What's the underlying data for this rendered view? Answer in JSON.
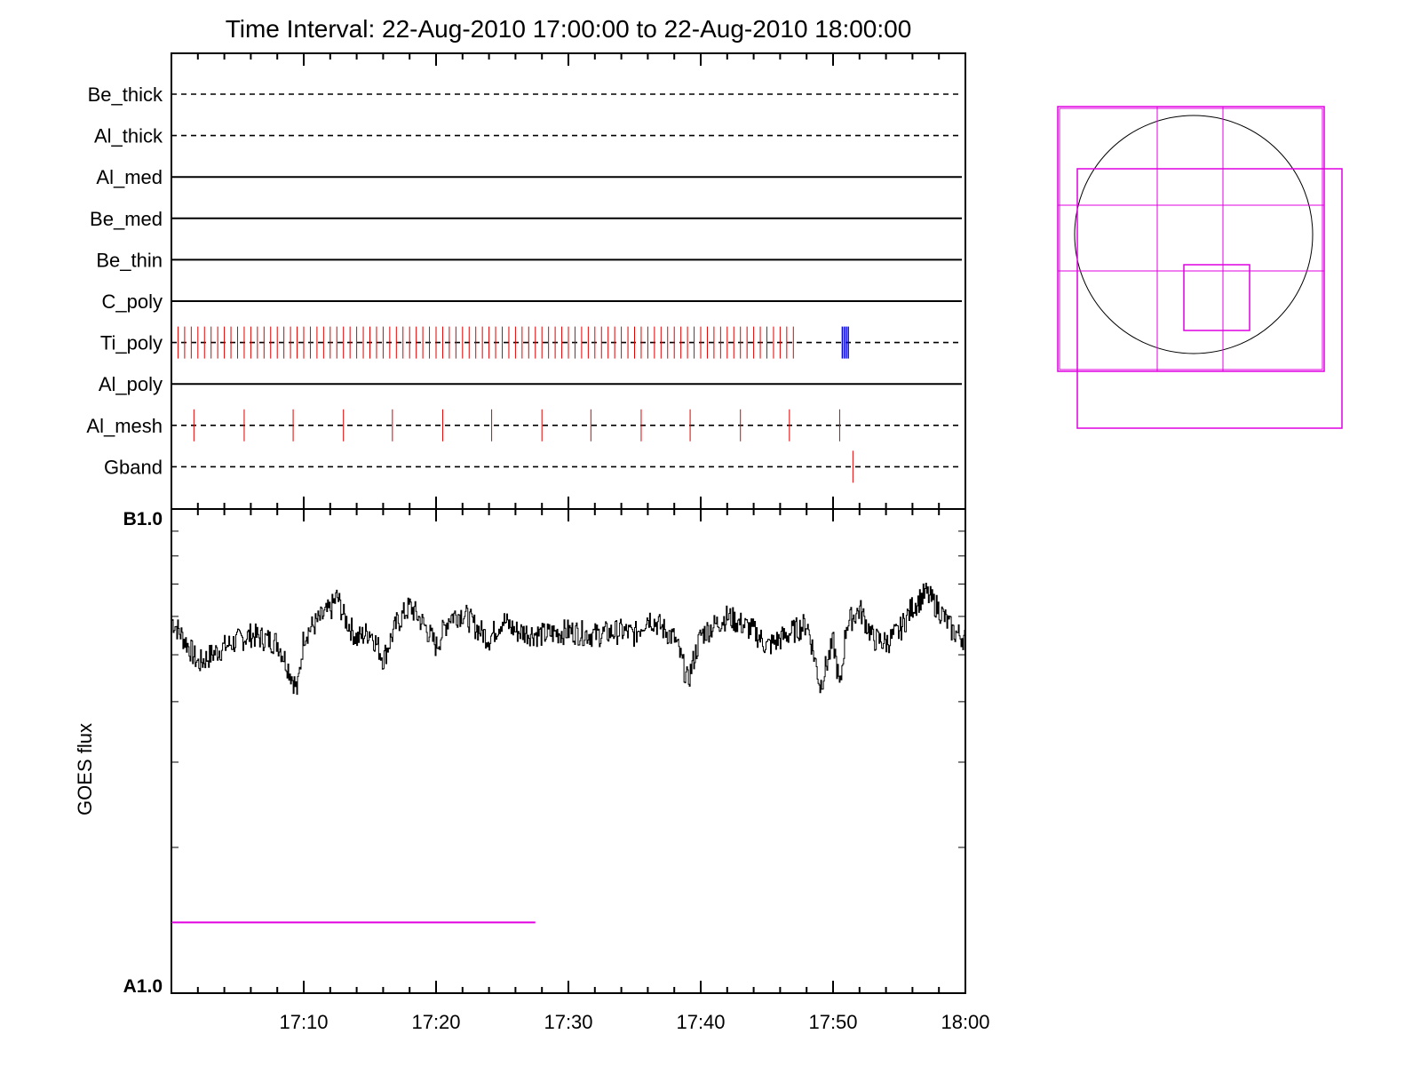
{
  "title": "Time Interval: 22-Aug-2010 17:00:00 to 22-Aug-2010 18:00:00",
  "chart_data": [
    {
      "type": "timeline",
      "panel": "filter-status",
      "x_range_minutes": [
        0,
        60
      ],
      "rows": [
        {
          "label": "Be_thick",
          "style": "dashed",
          "events": []
        },
        {
          "label": "Al_thick",
          "style": "dashed",
          "events": []
        },
        {
          "label": "Al_med",
          "style": "solid",
          "events": []
        },
        {
          "label": "Be_med",
          "style": "solid",
          "events": []
        },
        {
          "label": "Be_thin",
          "style": "solid",
          "events": []
        },
        {
          "label": "C_poly",
          "style": "solid",
          "events": []
        },
        {
          "label": "Ti_poly",
          "style": "dashed",
          "events": "many red ticks approx every 0.5 min from 17:00 to 17:47; blue ticks near 17:50.8-17:51.2",
          "red_ticks_range_minutes": [
            0.5,
            47.0
          ],
          "red_tick_spacing_minutes": 0.5,
          "blue_ticks_minutes": [
            50.7,
            50.85,
            51.0,
            51.15
          ]
        },
        {
          "label": "Al_poly",
          "style": "solid",
          "events": []
        },
        {
          "label": "Al_mesh",
          "style": "dashed",
          "events": "red ticks",
          "red_ticks_minutes": [
            1.7,
            5.5,
            9.2,
            13.0,
            16.7,
            20.5,
            24.2,
            28.0,
            31.7,
            35.5,
            39.2,
            43.0,
            46.7,
            50.5
          ]
        },
        {
          "label": "Gband",
          "style": "dashed",
          "events": "red tick",
          "red_ticks_minutes": [
            51.5
          ]
        }
      ],
      "colors": {
        "red": "#e00000",
        "blue": "#0000e0"
      }
    },
    {
      "type": "line",
      "panel": "goes-flux",
      "x_tick_labels": [
        "17:10",
        "17:20",
        "17:30",
        "17:40",
        "17:50",
        "18:00"
      ],
      "x_ticks_minutes": [
        10,
        20,
        30,
        40,
        50,
        60
      ],
      "x_range_minutes": [
        0,
        60
      ],
      "ylabel": "GOES flux",
      "y_tick_labels": [
        "B1.0",
        "A1.0"
      ],
      "y_scale": "log",
      "y_range_watts_per_m2": [
        1e-08,
        1e-07
      ],
      "series": [
        {
          "x_minutes": [
            0,
            2,
            4,
            6,
            8,
            9.5,
            10,
            12,
            12.5,
            13,
            14,
            15,
            16,
            17,
            18,
            19,
            20,
            21,
            22,
            23,
            24,
            25,
            26,
            28,
            30,
            32,
            34,
            35,
            36,
            38,
            39,
            40,
            42,
            44,
            45,
            46,
            48,
            49,
            50,
            50.5,
            51,
            52,
            53,
            54,
            55,
            56,
            57,
            58,
            59,
            60
          ],
          "values": [
            5.9e-08,
            4.8e-08,
            5.2e-08,
            5.5e-08,
            5.3e-08,
            4.2e-08,
            5.5e-08,
            6.2e-08,
            6.6e-08,
            6e-08,
            5.4e-08,
            5.6e-08,
            4.9e-08,
            5.8e-08,
            6.3e-08,
            5.8e-08,
            5.2e-08,
            6e-08,
            6.1e-08,
            5.7e-08,
            5.4e-08,
            5.9e-08,
            5.6e-08,
            5.5e-08,
            5.6e-08,
            5.5e-08,
            5.6e-08,
            5.5e-08,
            6e-08,
            5.4e-08,
            4.4e-08,
            5.5e-08,
            6e-08,
            5.6e-08,
            5.2e-08,
            5.4e-08,
            5.8e-08,
            4.3e-08,
            5.3e-08,
            4.2e-08,
            5.8e-08,
            6.2e-08,
            5.4e-08,
            5.3e-08,
            5.6e-08,
            6.3e-08,
            6.7e-08,
            6.2e-08,
            5.6e-08,
            5.4e-08
          ]
        }
      ],
      "threshold_line": {
        "color": "#e000e0",
        "value_watts_per_m2": 1.4e-08,
        "x_range_minutes": [
          0,
          27.5
        ]
      }
    }
  ],
  "sun_map": {
    "colors": {
      "box": "#e000e0",
      "disk": "#000000"
    }
  }
}
